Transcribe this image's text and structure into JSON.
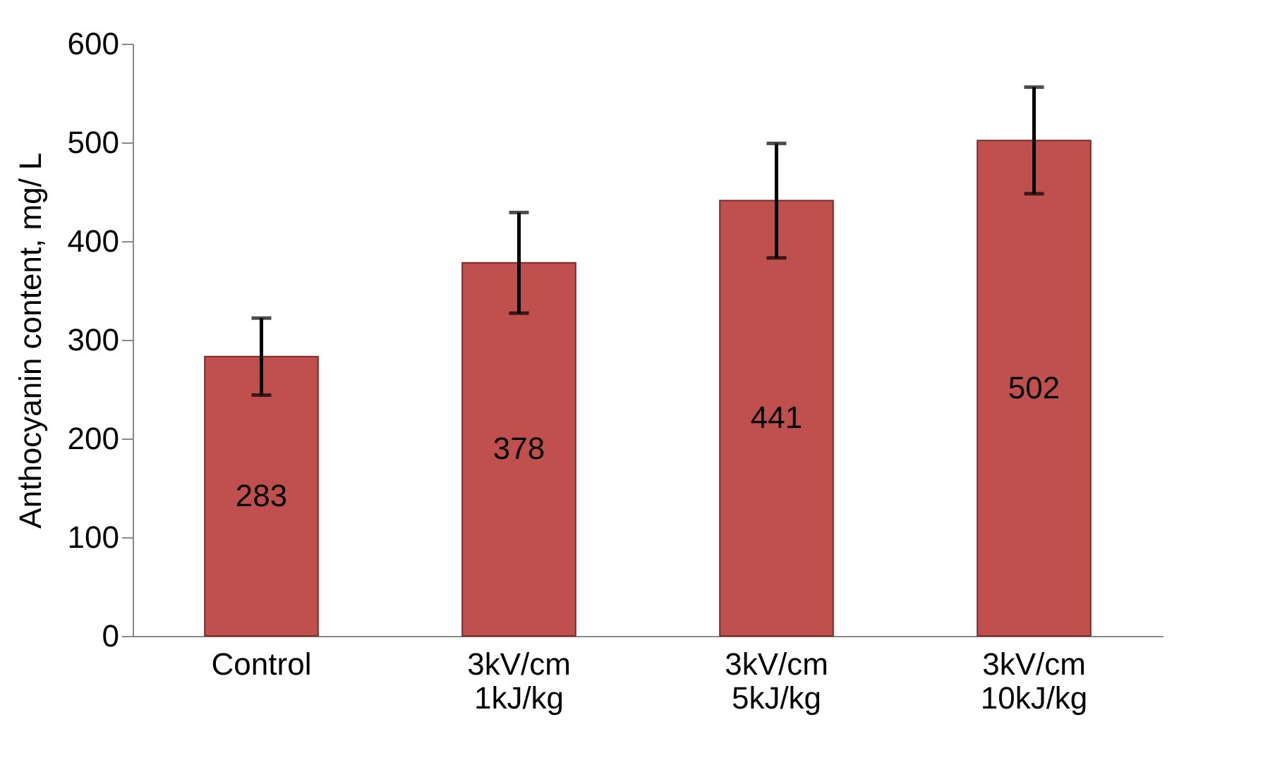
{
  "chart_data": {
    "type": "bar",
    "ylabel": "Anthocyanin content, mg/ L",
    "categories": [
      "Control",
      "3kV/cm 1kJ/kg",
      "3kV/cm 5kJ/kg",
      "3kV/cm 10kJ/kg"
    ],
    "values": [
      283,
      378,
      441,
      502
    ],
    "errors": [
      39,
      51,
      58,
      54
    ],
    "color": "#c0504d",
    "data_labels": true,
    "ylim": [
      0,
      600
    ],
    "yticks": [
      0,
      100,
      200,
      300,
      400,
      500,
      600
    ]
  }
}
